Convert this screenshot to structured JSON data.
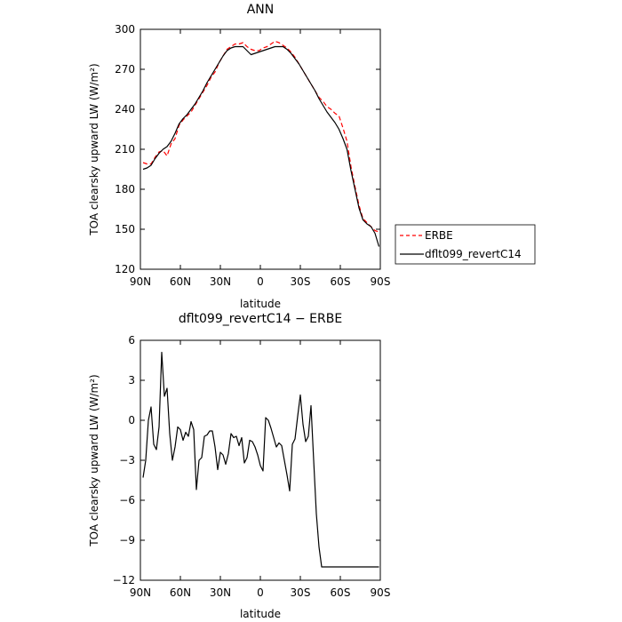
{
  "chart_data": [
    {
      "type": "line",
      "title": "ANN",
      "xlabel": "latitude",
      "ylabel": "TOA clearsky upward LW (W/m²)",
      "xlim": [
        90,
        -90
      ],
      "ylim": [
        120,
        300
      ],
      "x_ticks": [
        90,
        60,
        30,
        0,
        -30,
        -60,
        -90
      ],
      "x_tick_labels": [
        "90N",
        "60N",
        "30N",
        "0",
        "30S",
        "60S",
        "90S"
      ],
      "y_ticks": [
        120,
        150,
        180,
        210,
        240,
        270,
        300
      ],
      "y_tick_labels": [
        "120",
        "150",
        "180",
        "210",
        "240",
        "270",
        "300"
      ],
      "legend_position": "outside-right",
      "series": [
        {
          "name": "ERBE",
          "color": "#ff0000",
          "style": "dashed",
          "x": [
            88,
            85,
            82,
            79,
            76,
            73,
            70,
            67,
            64,
            61,
            58,
            55,
            52,
            49,
            46,
            43,
            40,
            37,
            34,
            31,
            28,
            25,
            22,
            19,
            16,
            13,
            10,
            7,
            4,
            1,
            -2,
            -5,
            -8,
            -11,
            -14,
            -17,
            -20,
            -23,
            -26,
            -29,
            -32,
            -35,
            -38,
            -41,
            -44,
            -47,
            -50,
            -53,
            -56,
            -59,
            -62,
            -65,
            -68,
            -71,
            -74,
            -77,
            -80,
            -83,
            -86,
            -89
          ],
          "values": [
            200,
            199,
            199,
            204,
            208,
            209,
            205,
            214,
            218,
            228,
            232,
            235,
            238,
            243,
            248,
            253,
            258,
            264,
            268,
            275,
            280,
            285,
            287,
            289,
            289,
            290,
            287,
            285,
            284,
            284,
            286,
            287,
            289,
            291,
            290,
            288,
            286,
            283,
            279,
            274,
            269,
            264,
            259,
            254,
            249,
            246,
            242,
            240,
            237,
            235,
            226,
            216,
            197,
            182,
            168,
            158,
            155,
            152,
            149,
            148
          ]
        },
        {
          "name": "dflt099_revertC14",
          "color": "#000000",
          "style": "solid",
          "x": [
            88,
            85,
            82,
            79,
            76,
            73,
            70,
            67,
            64,
            61,
            58,
            55,
            52,
            49,
            46,
            43,
            40,
            37,
            34,
            31,
            28,
            25,
            22,
            19,
            16,
            13,
            10,
            7,
            4,
            1,
            -2,
            -5,
            -8,
            -11,
            -14,
            -17,
            -20,
            -23,
            -26,
            -29,
            -32,
            -35,
            -38,
            -41,
            -44,
            -47,
            -50,
            -53,
            -56,
            -59,
            -62,
            -65,
            -68,
            -71,
            -74,
            -77,
            -80,
            -83,
            -86,
            -89
          ],
          "values": [
            195,
            196,
            198,
            203,
            207,
            210,
            212,
            216,
            222,
            229,
            233,
            236,
            240,
            244,
            249,
            254,
            260,
            265,
            270,
            275,
            280,
            284,
            286,
            287,
            287,
            287,
            284,
            281,
            282,
            283,
            284,
            285,
            286,
            287,
            287,
            287,
            285,
            282,
            278,
            274,
            269,
            264,
            259,
            254,
            248,
            243,
            238,
            234,
            230,
            225,
            218,
            210,
            194,
            180,
            166,
            157,
            154,
            152,
            147,
            137
          ]
        }
      ]
    },
    {
      "type": "line",
      "title": "dflt099_revertC14 − ERBE",
      "xlabel": "latitude",
      "ylabel": "TOA clearsky upward LW (W/m²)",
      "xlim": [
        90,
        -90
      ],
      "ylim": [
        -12,
        6
      ],
      "x_ticks": [
        90,
        60,
        30,
        0,
        -30,
        -60,
        -90
      ],
      "x_tick_labels": [
        "90N",
        "60N",
        "30N",
        "0",
        "30S",
        "60S",
        "90S"
      ],
      "y_ticks": [
        -12,
        -9,
        -6,
        -3,
        0,
        3,
        6
      ],
      "y_tick_labels": [
        "−12",
        "−9",
        "−6",
        "−3",
        "0",
        "3",
        "6"
      ],
      "series": [
        {
          "color": "#000000",
          "style": "solid",
          "x": [
            88,
            86,
            84,
            82,
            80,
            78,
            76,
            74,
            72,
            70,
            68,
            66,
            64,
            62,
            60,
            58,
            56,
            54,
            52,
            50,
            48,
            46,
            44,
            42,
            40,
            38,
            36,
            34,
            32,
            30,
            28,
            26,
            24,
            22,
            20,
            18,
            16,
            14,
            12,
            10,
            8,
            6,
            4,
            2,
            0,
            -2,
            -4,
            -6,
            -8,
            -10,
            -12,
            -14,
            -16,
            -18,
            -20,
            -22,
            -24,
            -26,
            -28,
            -30,
            -32,
            -34,
            -36,
            -38,
            -40,
            -42,
            -44,
            -46,
            -48,
            -50,
            -52,
            -54,
            -56,
            -58,
            -60,
            -62,
            -64,
            -66,
            -68,
            -70,
            -72,
            -74,
            -76,
            -78,
            -80,
            -82,
            -84,
            -86,
            -88,
            -89
          ],
          "values": [
            -4.3,
            -3.0,
            0.0,
            1.0,
            -1.8,
            -2.2,
            -0.5,
            5.1,
            1.8,
            2.4,
            -1.0,
            -3.0,
            -2.0,
            -0.5,
            -0.7,
            -1.5,
            -0.9,
            -1.2,
            -0.1,
            -0.7,
            -5.2,
            -3.0,
            -2.8,
            -1.2,
            -1.1,
            -0.8,
            -0.8,
            -2.0,
            -3.7,
            -2.4,
            -2.6,
            -3.3,
            -2.5,
            -1.0,
            -1.3,
            -1.2,
            -1.9,
            -1.3,
            -3.2,
            -2.8,
            -1.5,
            -1.6,
            -2.0,
            -2.6,
            -3.4,
            -3.8,
            0.2,
            0.0,
            -0.6,
            -1.3,
            -2.0,
            -1.7,
            -1.9,
            -3.0,
            -4.1,
            -5.3,
            -1.8,
            -1.4,
            0.3,
            1.9,
            -0.3,
            -1.6,
            -1.2,
            1.1,
            -3.0,
            -7.0,
            -9.5,
            -11.0,
            -11.0,
            -11.0,
            -11.0,
            -11.0,
            -11.0,
            -11.0,
            -11.0,
            -11.0,
            -11.0,
            -11.0,
            -11.0,
            -11.0,
            -11.0,
            -11.0,
            -11.0,
            -11.0,
            -11.0,
            -11.0,
            -11.0,
            -11.0,
            -11.0,
            -11.0
          ]
        }
      ]
    }
  ]
}
